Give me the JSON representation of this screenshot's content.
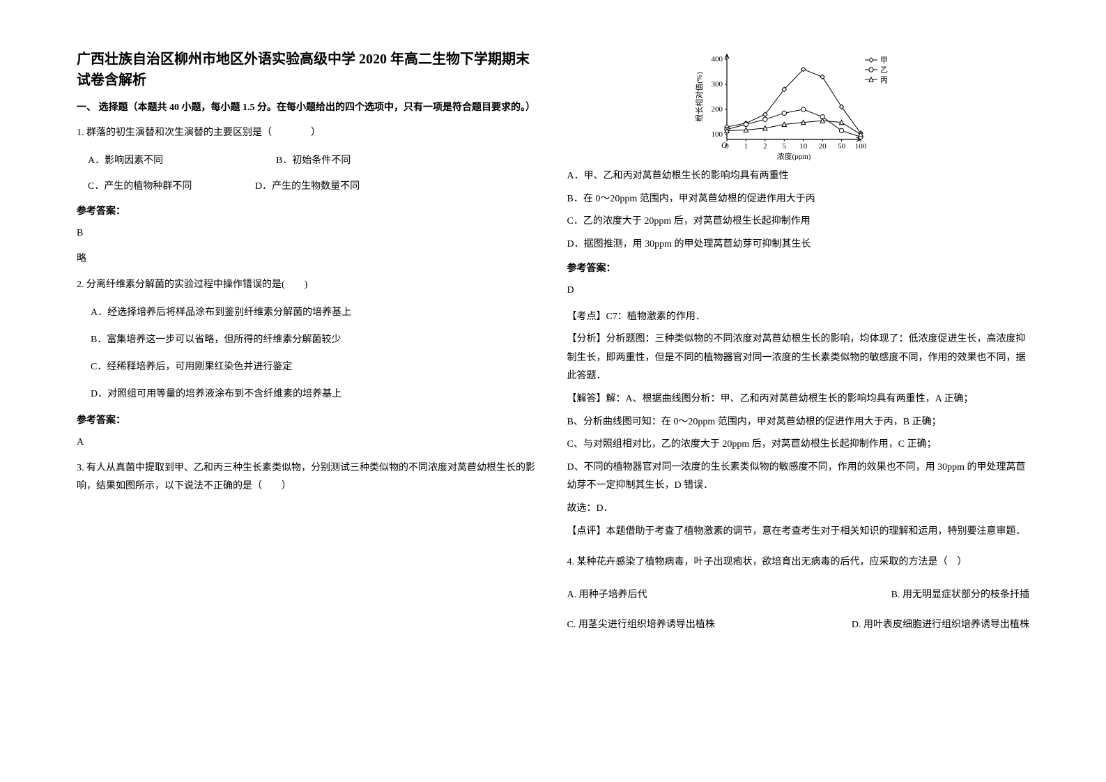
{
  "title": "广西壮族自治区柳州市地区外语实验高级中学 2020 年高二生物下学期期末试卷含解析",
  "section1": "一、 选择题（本题共 40 小题，每小题 1.5 分。在每小题给出的四个选项中，只有一项是符合题目要求的。）",
  "q1": {
    "stem": "1. 群落的初生演替和次生演替的主要区别是（　　　　）",
    "optA": "A．影响因素不同",
    "optB": "B．初始条件不同",
    "optC": "C．产生的植物种群不同",
    "optD": "D．产生的生物数量不同",
    "ansLabel": "参考答案：",
    "ans": "B",
    "note": "略"
  },
  "q2": {
    "stem": "2. 分离纤维素分解菌的实验过程中操作错误的是(　　)",
    "optA": "A．经选择培养后将样品涂布到鉴别纤维素分解菌的培养基上",
    "optB": "B．富集培养这一步可以省略，但所得的纤维素分解菌较少",
    "optC": "C．经稀释培养后，可用刚果红染色并进行鉴定",
    "optD": "D．对照组可用等量的培养液涂布到不含纤维素的培养基上",
    "ansLabel": "参考答案：",
    "ans": "A"
  },
  "q3": {
    "stem": "3. 有人从真菌中提取到甲、乙和丙三种生长素类似物，分别测试三种类似物的不同浓度对莴苣幼根生长的影响，结果如图所示，以下说法不正确的是（　　）",
    "chart": {
      "type": "line",
      "ylabel": "根长相对值(%)",
      "xlabel": "浓度(ppm)",
      "xticks": [
        "0",
        "1",
        "2",
        "5",
        "10",
        "20",
        "50",
        "100"
      ],
      "yticks": [
        100,
        200,
        300,
        400
      ],
      "xlim": [
        0,
        7
      ],
      "ylim": [
        80,
        420
      ],
      "series": [
        {
          "name": "甲",
          "marker": "diamond",
          "color": "#000000",
          "values": [
            130,
            145,
            180,
            280,
            360,
            330,
            210,
            105
          ]
        },
        {
          "name": "乙",
          "marker": "circle",
          "color": "#000000",
          "values": [
            120,
            140,
            160,
            185,
            200,
            170,
            115,
            90
          ]
        },
        {
          "name": "丙",
          "marker": "triangle",
          "color": "#000000",
          "values": [
            115,
            118,
            125,
            140,
            148,
            155,
            148,
            100
          ]
        }
      ],
      "bg": "#ffffff",
      "axis_color": "#000000",
      "font_size": 11
    },
    "optA": "A．甲、乙和丙对莴苣幼根生长的影响均具有两重性",
    "optB": "B．在 0～20ppm 范围内，甲对莴苣幼根的促进作用大于丙",
    "optC": "C．乙的浓度大于 20ppm 后，对莴苣幼根生长起抑制作用",
    "optD": "D．据图推测，用 30ppm 的甲处理莴苣幼芽可抑制其生长",
    "ansLabel": "参考答案：",
    "ans": "D",
    "kd": "【考点】C7：植物激素的作用．",
    "fx": "【分析】分析题图：三种类似物的不同浓度对莴苣幼根生长的影响，均体现了：低浓度促进生长，高浓度抑制生长，即两重性，但是不同的植物器官对同一浓度的生长素类似物的敏感度不同，作用的效果也不同，据此答题．",
    "jd1": "【解答】解：A、根据曲线图分析：甲、乙和丙对莴苣幼根生长的影响均具有两重性，A 正确；",
    "jd2": "B、分析曲线图可知：在 0～20ppm 范围内，甲对莴苣幼根的促进作用大于丙，B 正确；",
    "jd3": "C、与对照组相对比，乙的浓度大于 20ppm 后，对莴苣幼根生长起抑制作用，C 正确；",
    "jd4": "D、不同的植物器官对同一浓度的生长素类似物的敏感度不同，作用的效果也不同，用 30ppm 的甲处理莴苣幼芽不一定抑制其生长，D 错误．",
    "gx": "故选：D．",
    "dp": "【点评】本题借助于考查了植物激素的调节，意在考查考生对于相关知识的理解和运用，特别要注意审题．"
  },
  "q4": {
    "stem": "4. 某种花卉感染了植物病毒，叶子出现疱状，欲培育出无病毒的后代，应采取的方法是（　）",
    "optA": "A. 用种子培养后代",
    "optB": "B. 用无明显症状部分的枝条扦插",
    "optC": "C. 用茎尖进行组织培养诱导出植株",
    "optD": "D. 用叶表皮细胞进行组织培养诱导出植株"
  }
}
